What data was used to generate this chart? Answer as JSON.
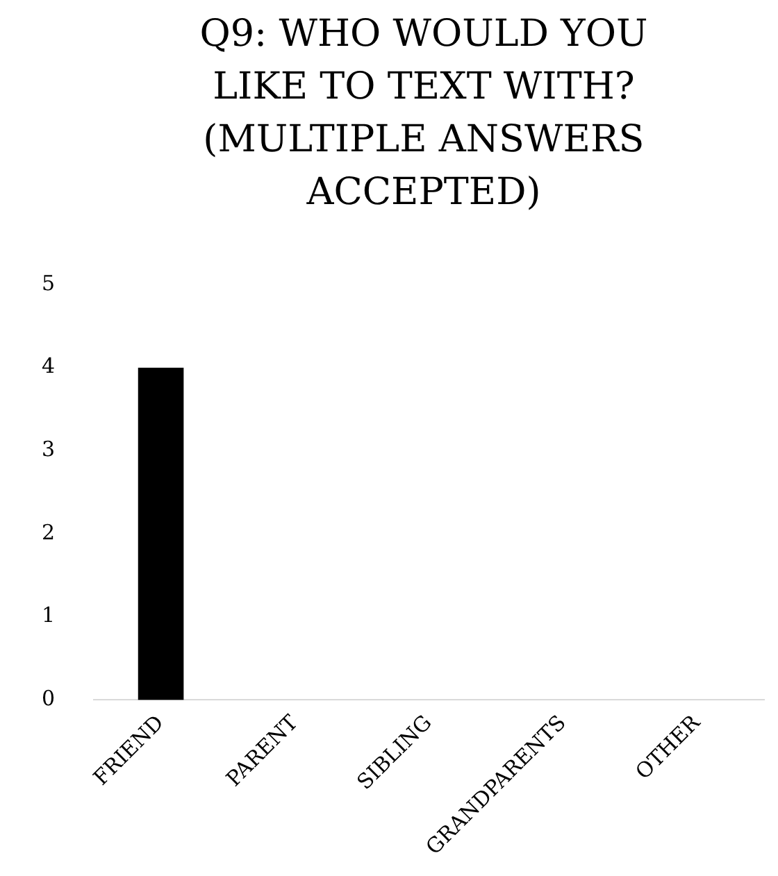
{
  "chart_data": {
    "type": "bar",
    "title": "Q9: WHO WOULD YOU LIKE TO TEXT WITH? (MULTIPLE ANSWERS ACCEPTED)",
    "categories": [
      "FRIEND",
      "PARENT",
      "SIBLING",
      "GRANDPARENTS",
      "OTHER"
    ],
    "values": [
      4,
      0,
      0,
      0,
      0
    ],
    "color": "#000000",
    "ylim": [
      0,
      5
    ],
    "yticks": [
      0,
      1,
      2,
      3,
      4,
      5
    ],
    "grid": false,
    "legend": false
  }
}
